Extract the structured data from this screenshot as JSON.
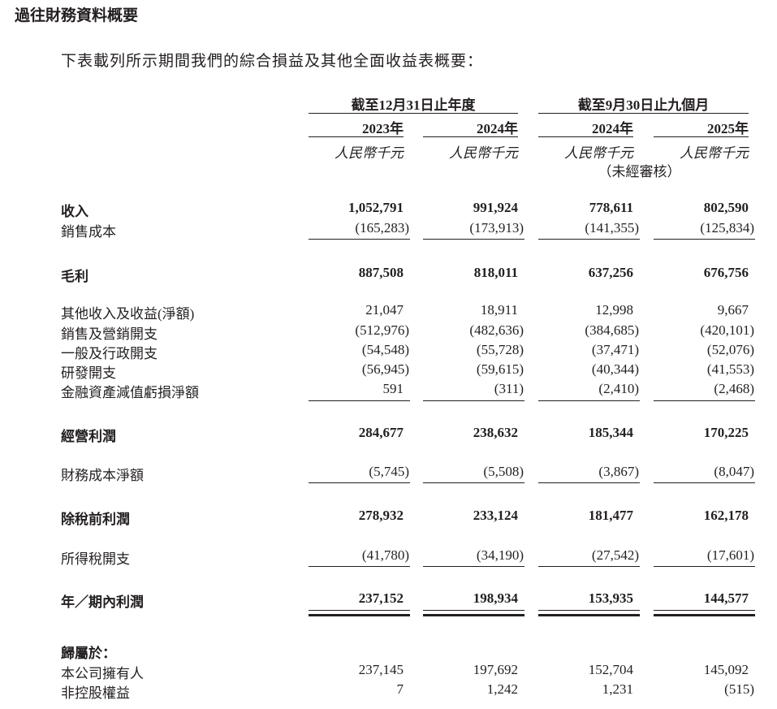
{
  "title": "過往財務資料概要",
  "intro": "下表載列所示期間我們的綜合損益及其他全面收益表概要：",
  "header": {
    "groups": [
      "截至12月31日止年度",
      "截至9月30日止九個月"
    ],
    "years": [
      "2023年",
      "2024年",
      "2024年",
      "2025年"
    ],
    "units": [
      "人民幣千元",
      "人民幣千元",
      "人民幣千元",
      "人民幣千元"
    ],
    "unaudited": "（未經審核）"
  },
  "rows": [
    {
      "label": "收入",
      "bold": true,
      "values": [
        "1,052,791",
        "991,924",
        "778,611",
        "802,590"
      ]
    },
    {
      "label": "銷售成本",
      "bold": false,
      "values": [
        "(165,283)",
        "(173,913)",
        "(141,355)",
        "(125,834)"
      ]
    },
    {
      "label": "毛利",
      "bold": true,
      "values": [
        "887,508",
        "818,011",
        "637,256",
        "676,756"
      ]
    },
    {
      "label": "其他收入及收益(淨額)",
      "bold": false,
      "values": [
        "21,047",
        "18,911",
        "12,998",
        "9,667"
      ]
    },
    {
      "label": "銷售及營銷開支",
      "bold": false,
      "values": [
        "(512,976)",
        "(482,636)",
        "(384,685)",
        "(420,101)"
      ]
    },
    {
      "label": "一般及行政開支",
      "bold": false,
      "values": [
        "(54,548)",
        "(55,728)",
        "(37,471)",
        "(52,076)"
      ]
    },
    {
      "label": "研發開支",
      "bold": false,
      "values": [
        "(56,945)",
        "(59,615)",
        "(40,344)",
        "(41,553)"
      ]
    },
    {
      "label": "金融資產減值虧損淨額",
      "bold": false,
      "values": [
        "591",
        "(311)",
        "(2,410)",
        "(2,468)"
      ]
    },
    {
      "label": "經營利潤",
      "bold": true,
      "values": [
        "284,677",
        "238,632",
        "185,344",
        "170,225"
      ]
    },
    {
      "label": "財務成本淨額",
      "bold": false,
      "values": [
        "(5,745)",
        "(5,508)",
        "(3,867)",
        "(8,047)"
      ]
    },
    {
      "label": "除稅前利潤",
      "bold": true,
      "values": [
        "278,932",
        "233,124",
        "181,477",
        "162,178"
      ]
    },
    {
      "label": "所得稅開支",
      "bold": false,
      "values": [
        "(41,780)",
        "(34,190)",
        "(27,542)",
        "(17,601)"
      ]
    },
    {
      "label": "年／期內利潤",
      "bold": true,
      "values": [
        "237,152",
        "198,934",
        "153,935",
        "144,577"
      ]
    },
    {
      "label": "歸屬於：",
      "bold": true,
      "values": [
        "",
        "",
        "",
        ""
      ]
    },
    {
      "label": "本公司擁有人",
      "bold": false,
      "values": [
        "237,145",
        "197,692",
        "152,704",
        "145,092"
      ]
    },
    {
      "label": "非控股權益",
      "bold": false,
      "values": [
        "7",
        "1,242",
        "1,231",
        "(515)"
      ]
    }
  ]
}
